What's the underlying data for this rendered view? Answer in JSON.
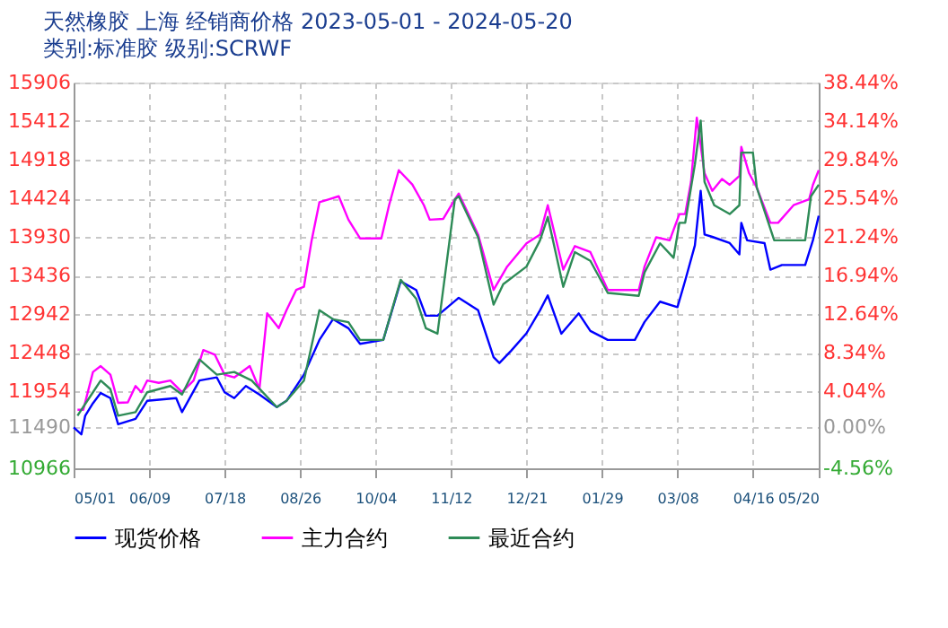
{
  "chart_data": {
    "type": "line",
    "title": "天然橡胶 上海 经销商价格 2023-05-01 - 2024-05-20",
    "subtitle": "类别:标准胶 级别:SCRWF",
    "xlim": [
      "2023-05-01",
      "2024-05-20"
    ],
    "xticks": [
      {
        "value": "2023-05-01",
        "label": "05/01"
      },
      {
        "value": "2023-06-09",
        "label": "06/09"
      },
      {
        "value": "2023-07-18",
        "label": "07/18"
      },
      {
        "value": "2023-08-26",
        "label": "08/26"
      },
      {
        "value": "2023-10-04",
        "label": "10/04"
      },
      {
        "value": "2023-11-12",
        "label": "11/12"
      },
      {
        "value": "2023-12-21",
        "label": "12/21"
      },
      {
        "value": "2024-01-29",
        "label": "01/29"
      },
      {
        "value": "2024-03-08",
        "label": "03/08"
      },
      {
        "value": "2024-04-16",
        "label": "04/16"
      },
      {
        "value": "2024-05-20",
        "label": "05/20"
      }
    ],
    "ylim": [
      10966,
      15906
    ],
    "yticks": [
      15906,
      15412,
      14918,
      14424,
      13930,
      13436,
      12942,
      12448,
      11954,
      11490,
      10966
    ],
    "y2lim": [
      -4.56,
      38.44
    ],
    "y2ticks": [
      {
        "value": 38.44,
        "label": "38.44%"
      },
      {
        "value": 34.14,
        "label": "34.14%"
      },
      {
        "value": 29.84,
        "label": "29.84%"
      },
      {
        "value": 25.54,
        "label": "25.54%"
      },
      {
        "value": 21.24,
        "label": "21.24%"
      },
      {
        "value": 16.94,
        "label": "16.94%"
      },
      {
        "value": 12.64,
        "label": "12.64%"
      },
      {
        "value": 8.34,
        "label": "8.34%"
      },
      {
        "value": 4.04,
        "label": "4.04%"
      },
      {
        "value": 0,
        "label": "0.00%"
      },
      {
        "value": -4.56,
        "label": "-4.56%"
      }
    ],
    "grid": true,
    "legend": "bottom",
    "line_style": "solid",
    "marker": "none",
    "series": [
      {
        "name": "现货价格",
        "color": "#0000ff",
        "x": [
          "2023-05-01",
          "2023-05-05",
          "2023-05-07",
          "2023-05-11",
          "2023-05-15",
          "2023-05-20",
          "2023-05-24",
          "2023-06-02",
          "2023-06-08",
          "2023-06-23",
          "2023-06-26",
          "2023-07-05",
          "2023-07-14",
          "2023-07-18",
          "2023-07-23",
          "2023-07-29",
          "2023-08-05",
          "2023-08-14",
          "2023-08-19",
          "2023-08-28",
          "2023-09-05",
          "2023-09-12",
          "2023-09-20",
          "2023-09-26",
          "2023-10-08",
          "2023-10-17",
          "2023-10-25",
          "2023-10-30",
          "2023-11-05",
          "2023-11-16",
          "2023-11-26",
          "2023-12-04",
          "2023-12-07",
          "2023-12-13",
          "2023-12-21",
          "2023-12-28",
          "2024-01-01",
          "2024-01-08",
          "2024-01-17",
          "2024-01-23",
          "2024-02-01",
          "2024-02-15",
          "2024-02-20",
          "2024-02-28",
          "2024-03-08",
          "2024-03-12",
          "2024-03-17",
          "2024-03-20",
          "2024-03-22",
          "2024-03-26",
          "2024-04-04",
          "2024-04-09",
          "2024-04-10",
          "2024-04-13",
          "2024-04-22",
          "2024-04-25",
          "2024-05-01",
          "2024-05-13",
          "2024-05-17",
          "2024-05-20"
        ],
        "values": [
          11490,
          11400,
          11640,
          11800,
          11930,
          11865,
          11530,
          11600,
          11830,
          11865,
          11685,
          12090,
          12130,
          11940,
          11865,
          12020,
          11910,
          11750,
          11830,
          12165,
          12610,
          12875,
          12760,
          12560,
          12610,
          13360,
          13250,
          12920,
          12920,
          13150,
          12990,
          12390,
          12314,
          12470,
          12695,
          12990,
          13180,
          12690,
          12950,
          12725,
          12610,
          12610,
          12840,
          13100,
          13030,
          13370,
          13820,
          14520,
          13960,
          13930,
          13850,
          13705,
          14110,
          13885,
          13850,
          13510,
          13570,
          13570,
          13885,
          14200
        ]
      },
      {
        "name": "主力合约",
        "color": "#ff00ff",
        "x": [
          "2023-05-03",
          "2023-05-06",
          "2023-05-11",
          "2023-05-15",
          "2023-05-20",
          "2023-05-24",
          "2023-05-29",
          "2023-06-02",
          "2023-06-05",
          "2023-06-08",
          "2023-06-14",
          "2023-06-20",
          "2023-06-26",
          "2023-07-02",
          "2023-07-07",
          "2023-07-13",
          "2023-07-18",
          "2023-07-23",
          "2023-07-31",
          "2023-08-05",
          "2023-08-09",
          "2023-08-15",
          "2023-08-19",
          "2023-08-24",
          "2023-08-28",
          "2023-09-01",
          "2023-09-05",
          "2023-09-10",
          "2023-09-15",
          "2023-09-20",
          "2023-09-26",
          "2023-10-07",
          "2023-10-11",
          "2023-10-16",
          "2023-10-23",
          "2023-10-29",
          "2023-11-01",
          "2023-11-08",
          "2023-11-14",
          "2023-11-16",
          "2023-11-26",
          "2023-12-04",
          "2023-12-11",
          "2023-12-21",
          "2023-12-28",
          "2024-01-01",
          "2024-01-09",
          "2024-01-15",
          "2024-01-23",
          "2024-02-01",
          "2024-02-08",
          "2024-02-17",
          "2024-02-20",
          "2024-02-26",
          "2024-03-04",
          "2024-03-09",
          "2024-03-12",
          "2024-03-15",
          "2024-03-18",
          "2024-03-22",
          "2024-03-26",
          "2024-03-31",
          "2024-04-04",
          "2024-04-09",
          "2024-04-10",
          "2024-04-14",
          "2024-04-18",
          "2024-04-25",
          "2024-04-29",
          "2024-05-07",
          "2024-05-15",
          "2024-05-17",
          "2024-05-20"
        ],
        "values": [
          11715,
          11715,
          12200,
          12275,
          12165,
          11805,
          11810,
          12020,
          11940,
          12090,
          12060,
          12090,
          11940,
          12090,
          12480,
          12420,
          12165,
          12130,
          12275,
          11980,
          12950,
          12760,
          12990,
          13250,
          13290,
          13885,
          14373,
          14410,
          14450,
          14150,
          13910,
          13910,
          14335,
          14783,
          14600,
          14335,
          14150,
          14160,
          14410,
          14485,
          13960,
          13250,
          13549,
          13847,
          13960,
          14335,
          13510,
          13812,
          13735,
          13250,
          13250,
          13250,
          13549,
          13924,
          13885,
          14222,
          14222,
          14633,
          15457,
          14745,
          14520,
          14670,
          14597,
          14710,
          15082,
          14745,
          14559,
          14110,
          14110,
          14335,
          14410,
          14597,
          14783
        ]
      },
      {
        "name": "最近合约",
        "color": "#2e8b57",
        "x": [
          "2023-05-03",
          "2023-05-07",
          "2023-05-11",
          "2023-05-15",
          "2023-05-20",
          "2023-05-24",
          "2023-06-02",
          "2023-06-08",
          "2023-06-14",
          "2023-06-20",
          "2023-06-26",
          "2023-07-05",
          "2023-07-14",
          "2023-07-23",
          "2023-08-01",
          "2023-08-14",
          "2023-08-19",
          "2023-08-28",
          "2023-09-05",
          "2023-09-12",
          "2023-09-20",
          "2023-09-26",
          "2023-10-08",
          "2023-10-17",
          "2023-10-25",
          "2023-10-30",
          "2023-11-05",
          "2023-11-14",
          "2023-11-16",
          "2023-11-26",
          "2023-12-04",
          "2023-12-09",
          "2023-12-21",
          "2023-12-28",
          "2024-01-01",
          "2024-01-09",
          "2024-01-15",
          "2024-01-23",
          "2024-02-01",
          "2024-02-17",
          "2024-02-20",
          "2024-02-28",
          "2024-03-06",
          "2024-03-09",
          "2024-03-12",
          "2024-03-17",
          "2024-03-20",
          "2024-03-22",
          "2024-03-27",
          "2024-04-04",
          "2024-04-09",
          "2024-04-10",
          "2024-04-16",
          "2024-04-18",
          "2024-04-27",
          "2024-05-04",
          "2024-05-13",
          "2024-05-16",
          "2024-05-20"
        ],
        "values": [
          11640,
          11790,
          11940,
          12090,
          11980,
          11640,
          11685,
          11940,
          11980,
          12020,
          11910,
          12360,
          12165,
          12200,
          12090,
          11750,
          11830,
          12090,
          12990,
          12875,
          12837,
          12610,
          12610,
          13380,
          13138,
          12760,
          12690,
          14410,
          14450,
          13924,
          13062,
          13324,
          13549,
          13885,
          14185,
          13290,
          13735,
          13623,
          13212,
          13174,
          13475,
          13847,
          13661,
          14110,
          14110,
          14858,
          15419,
          14633,
          14335,
          14222,
          14335,
          15008,
          15008,
          14559,
          13885,
          13885,
          13885,
          14450,
          14597
        ]
      }
    ]
  }
}
